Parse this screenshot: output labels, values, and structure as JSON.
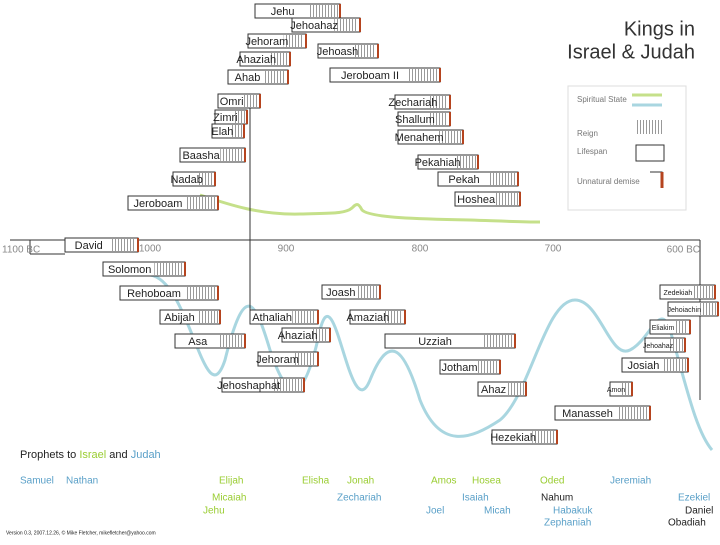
{
  "title": [
    "Kings in",
    "Israel & Judah"
  ],
  "legend": [
    "Spiritual State",
    "Reign",
    "Lifespan",
    "Unnatural demise"
  ],
  "timeline": [
    "1100 BC",
    "1000",
    "900",
    "800",
    "700",
    "600 BC"
  ],
  "kings": {
    "israel": [
      "Jehu",
      "Jehoahaz",
      "Jehoram",
      "Jehoash",
      "Ahaziah",
      "Ahab",
      "Jeroboam II",
      "Omri",
      "Zimri",
      "Elah",
      "Zechariah",
      "Shallum",
      "Menahem",
      "Baasha",
      "Pekahiah",
      "Nadab",
      "Pekah",
      "Jeroboam",
      "Hoshea"
    ],
    "united": [
      "David",
      "Solomon"
    ],
    "judah": [
      "Rehoboam",
      "Joash",
      "Zedekiah",
      "Jehoiachin",
      "Abijah",
      "Athaliah",
      "Amaziah",
      "Eliakim",
      "Jehoahaz",
      "Asa",
      "Ahaziah",
      "Uzziah",
      "Josiah",
      "Jehoram",
      "Jotham",
      "Jehoshaphat",
      "Ahaz",
      "Amon",
      "Manasseh",
      "Hezekiah"
    ]
  },
  "prophets_heading": [
    "Prophets to ",
    "Israel",
    " and ",
    "Judah"
  ],
  "colors": {
    "israel": "#9acd32",
    "judah": "#5aa0c8",
    "both": "#222222",
    "spiritual_israel": "#c5e08a",
    "spiritual_judah": "#a9d6e0"
  },
  "prophets": [
    {
      "name": "Samuel",
      "group": "judah"
    },
    {
      "name": "Nathan",
      "group": "judah"
    },
    {
      "name": "Elijah",
      "group": "israel"
    },
    {
      "name": "Elisha",
      "group": "israel"
    },
    {
      "name": "Jonah",
      "group": "israel"
    },
    {
      "name": "Amos",
      "group": "israel"
    },
    {
      "name": "Hosea",
      "group": "israel"
    },
    {
      "name": "Oded",
      "group": "israel"
    },
    {
      "name": "Jeremiah",
      "group": "judah"
    },
    {
      "name": "Micaiah",
      "group": "israel"
    },
    {
      "name": "Jehu",
      "group": "israel"
    },
    {
      "name": "Zechariah",
      "group": "judah"
    },
    {
      "name": "Isaiah",
      "group": "judah"
    },
    {
      "name": "Nahum",
      "group": "both"
    },
    {
      "name": "Ezekiel",
      "group": "judah"
    },
    {
      "name": "Habakuk",
      "group": "judah"
    },
    {
      "name": "Daniel",
      "group": "both"
    },
    {
      "name": "Joel",
      "group": "judah"
    },
    {
      "name": "Micah",
      "group": "judah"
    },
    {
      "name": "Zephaniah",
      "group": "judah"
    },
    {
      "name": "Obadiah",
      "group": "both"
    }
  ],
  "footer": "Version 0.3, 2007.12.26, © Mike Fletcher, mikefletcher@yahoo.com"
}
